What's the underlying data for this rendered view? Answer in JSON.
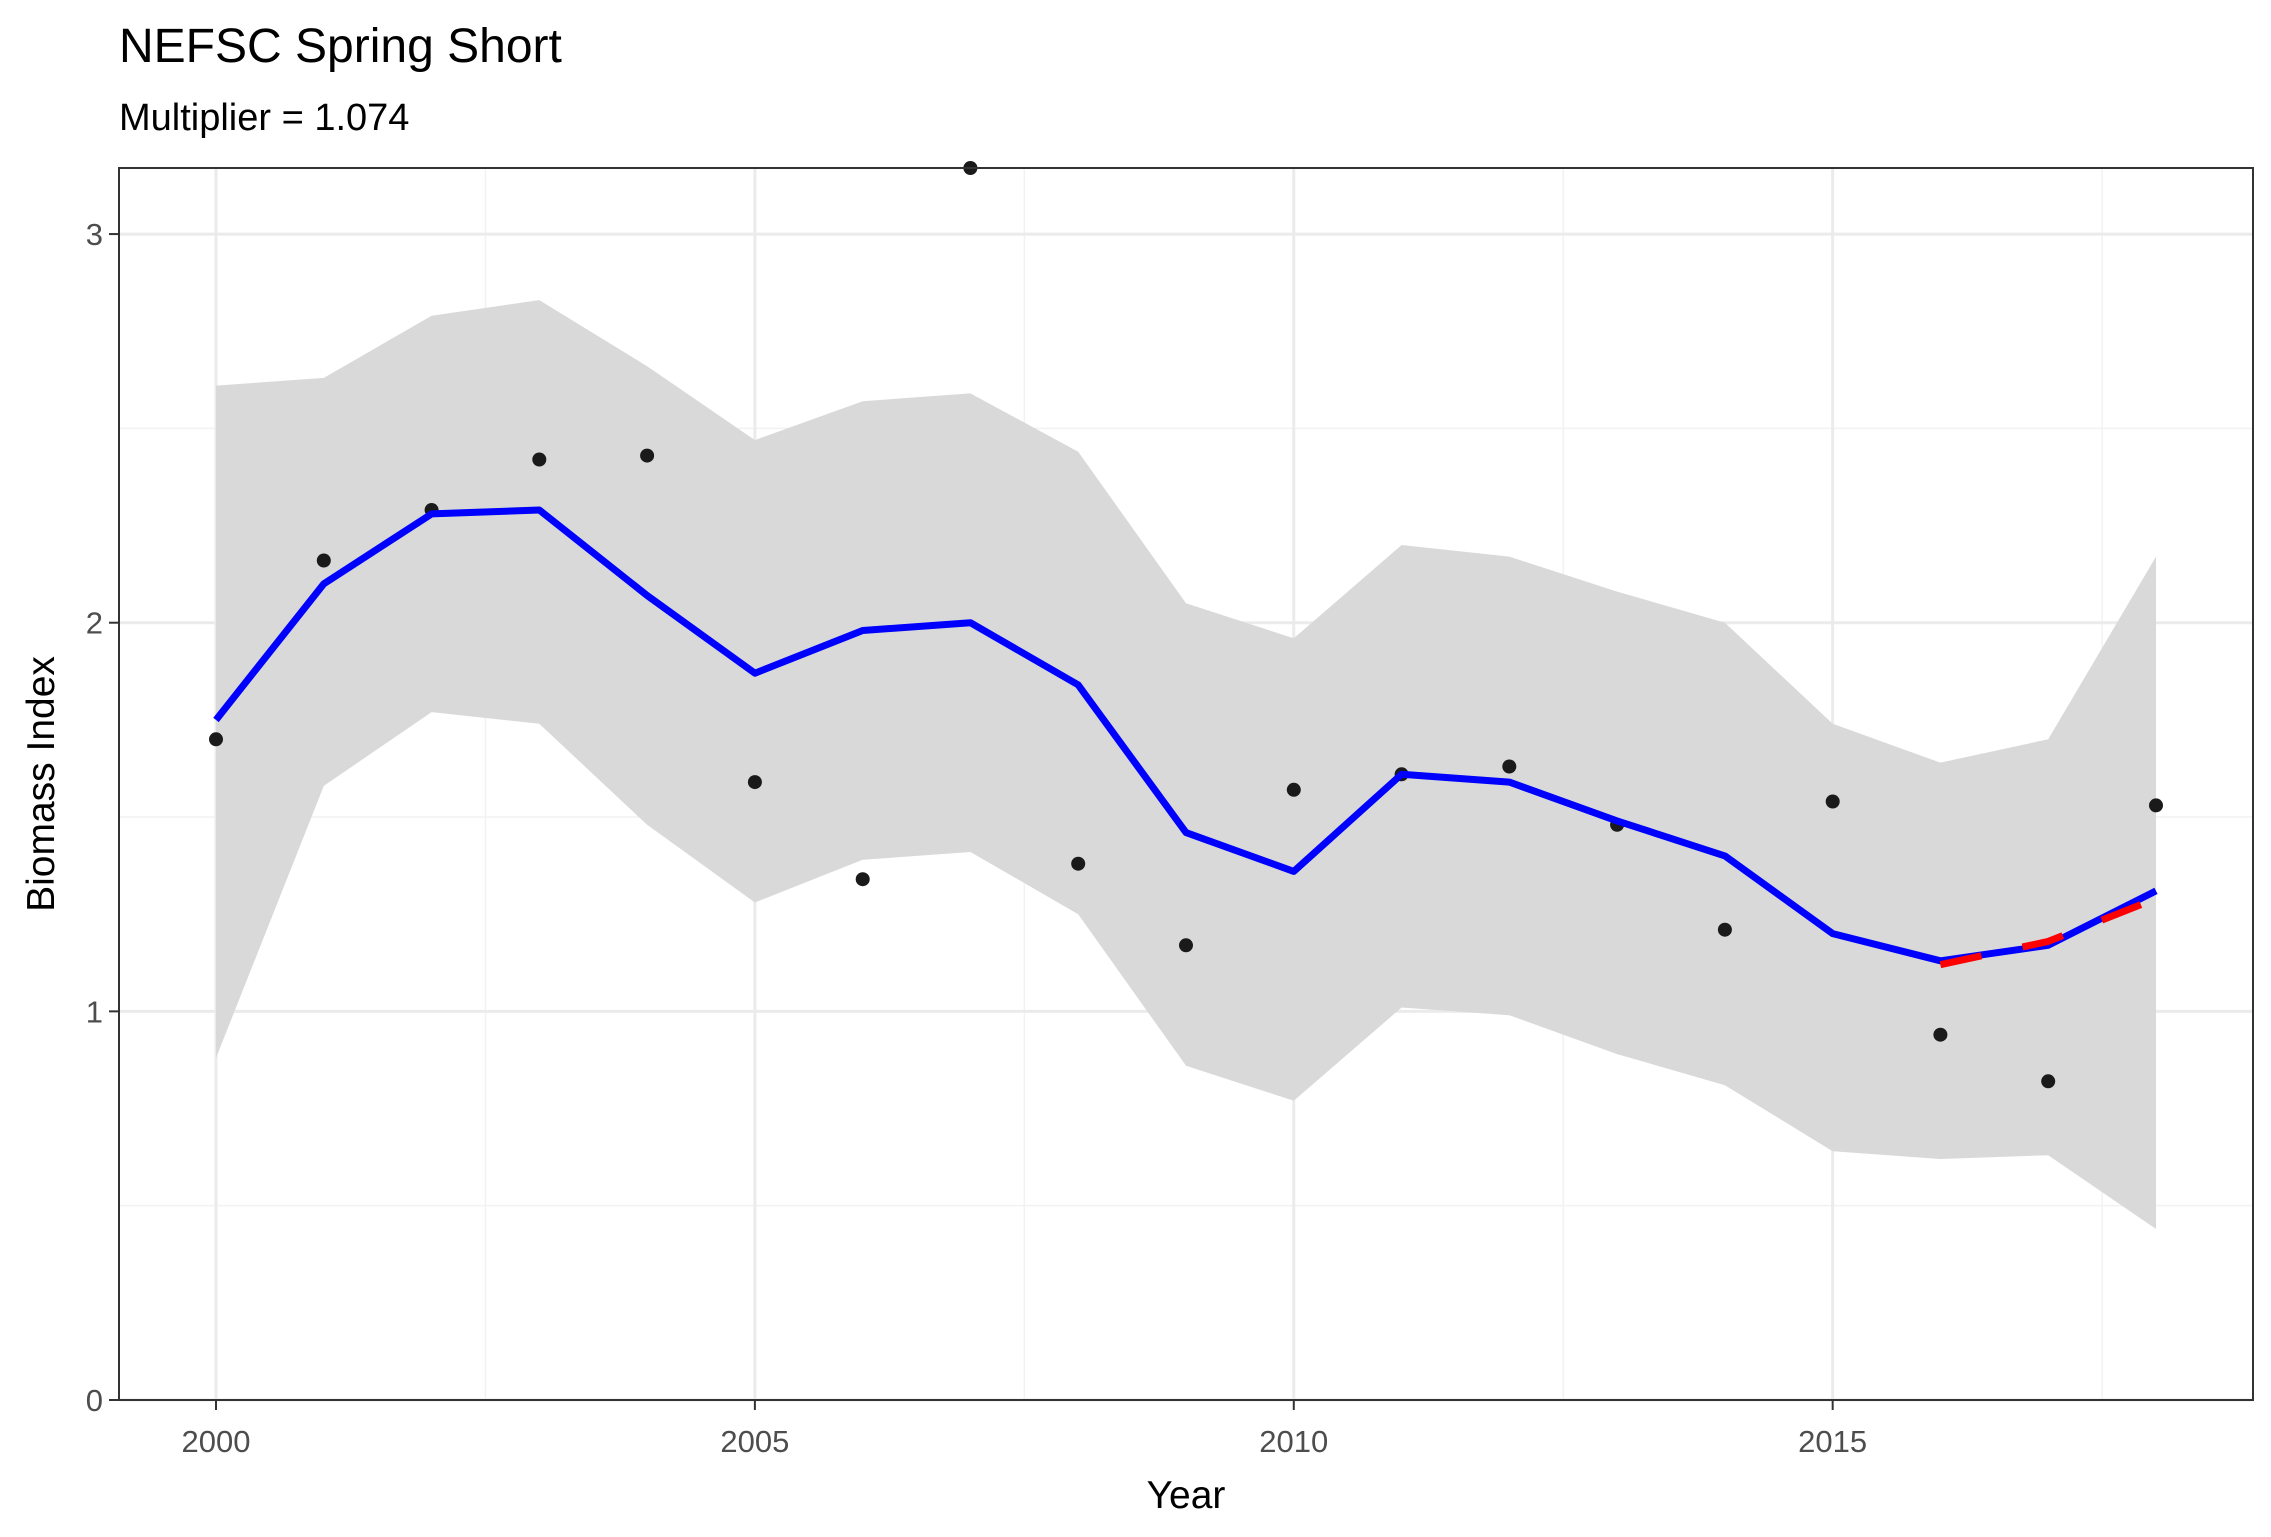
{
  "chart_data": {
    "type": "line",
    "title": "NEFSC Spring Short",
    "subtitle": "Multiplier = 1.074",
    "xlabel": "Year",
    "ylabel": "Biomass Index",
    "xlim": [
      1999.1,
      2018.9
    ],
    "ylim": [
      0,
      3.17
    ],
    "x_ticks": [
      2000,
      2005,
      2010,
      2015
    ],
    "y_ticks": [
      0,
      1,
      2,
      3
    ],
    "x_tick_labels": [
      "2000",
      "2005",
      "2010",
      "2015"
    ],
    "y_tick_labels": [
      "0",
      "1",
      "2",
      "3"
    ],
    "grid": true,
    "legend": "none",
    "x": [
      2000,
      2001,
      2002,
      2003,
      2004,
      2005,
      2006,
      2007,
      2008,
      2009,
      2010,
      2011,
      2012,
      2013,
      2014,
      2015,
      2016,
      2017,
      2018
    ],
    "series": [
      {
        "type": "ribbon",
        "color": "#d9d9d9",
        "lower": [
          0.88,
          1.58,
          1.77,
          1.74,
          1.48,
          1.28,
          1.39,
          1.41,
          1.25,
          0.86,
          0.77,
          1.01,
          0.99,
          0.89,
          0.81,
          0.64,
          0.62,
          0.63,
          0.44
        ],
        "upper": [
          2.61,
          2.63,
          2.79,
          2.83,
          2.66,
          2.47,
          2.57,
          2.59,
          2.44,
          2.05,
          1.96,
          2.2,
          2.17,
          2.08,
          2.0,
          1.74,
          1.64,
          1.7,
          2.17
        ]
      },
      {
        "type": "points",
        "color": "#1a1a1a",
        "values": [
          1.7,
          2.16,
          2.29,
          2.42,
          2.43,
          1.59,
          1.34,
          3.17,
          1.38,
          1.17,
          1.57,
          1.61,
          1.63,
          1.48,
          1.21,
          1.54,
          0.94,
          0.82,
          1.53
        ]
      },
      {
        "type": "line",
        "color": "#0000ff",
        "values": [
          1.75,
          2.1,
          2.28,
          2.29,
          2.07,
          1.87,
          1.98,
          2.0,
          1.84,
          1.46,
          1.36,
          1.61,
          1.59,
          1.49,
          1.4,
          1.2,
          1.13,
          1.17,
          1.31
        ]
      },
      {
        "type": "line",
        "style": "dashed",
        "color": "#ff0000",
        "x": [
          2016,
          2017,
          2018
        ],
        "values": [
          1.12,
          1.18,
          1.29
        ]
      }
    ]
  }
}
